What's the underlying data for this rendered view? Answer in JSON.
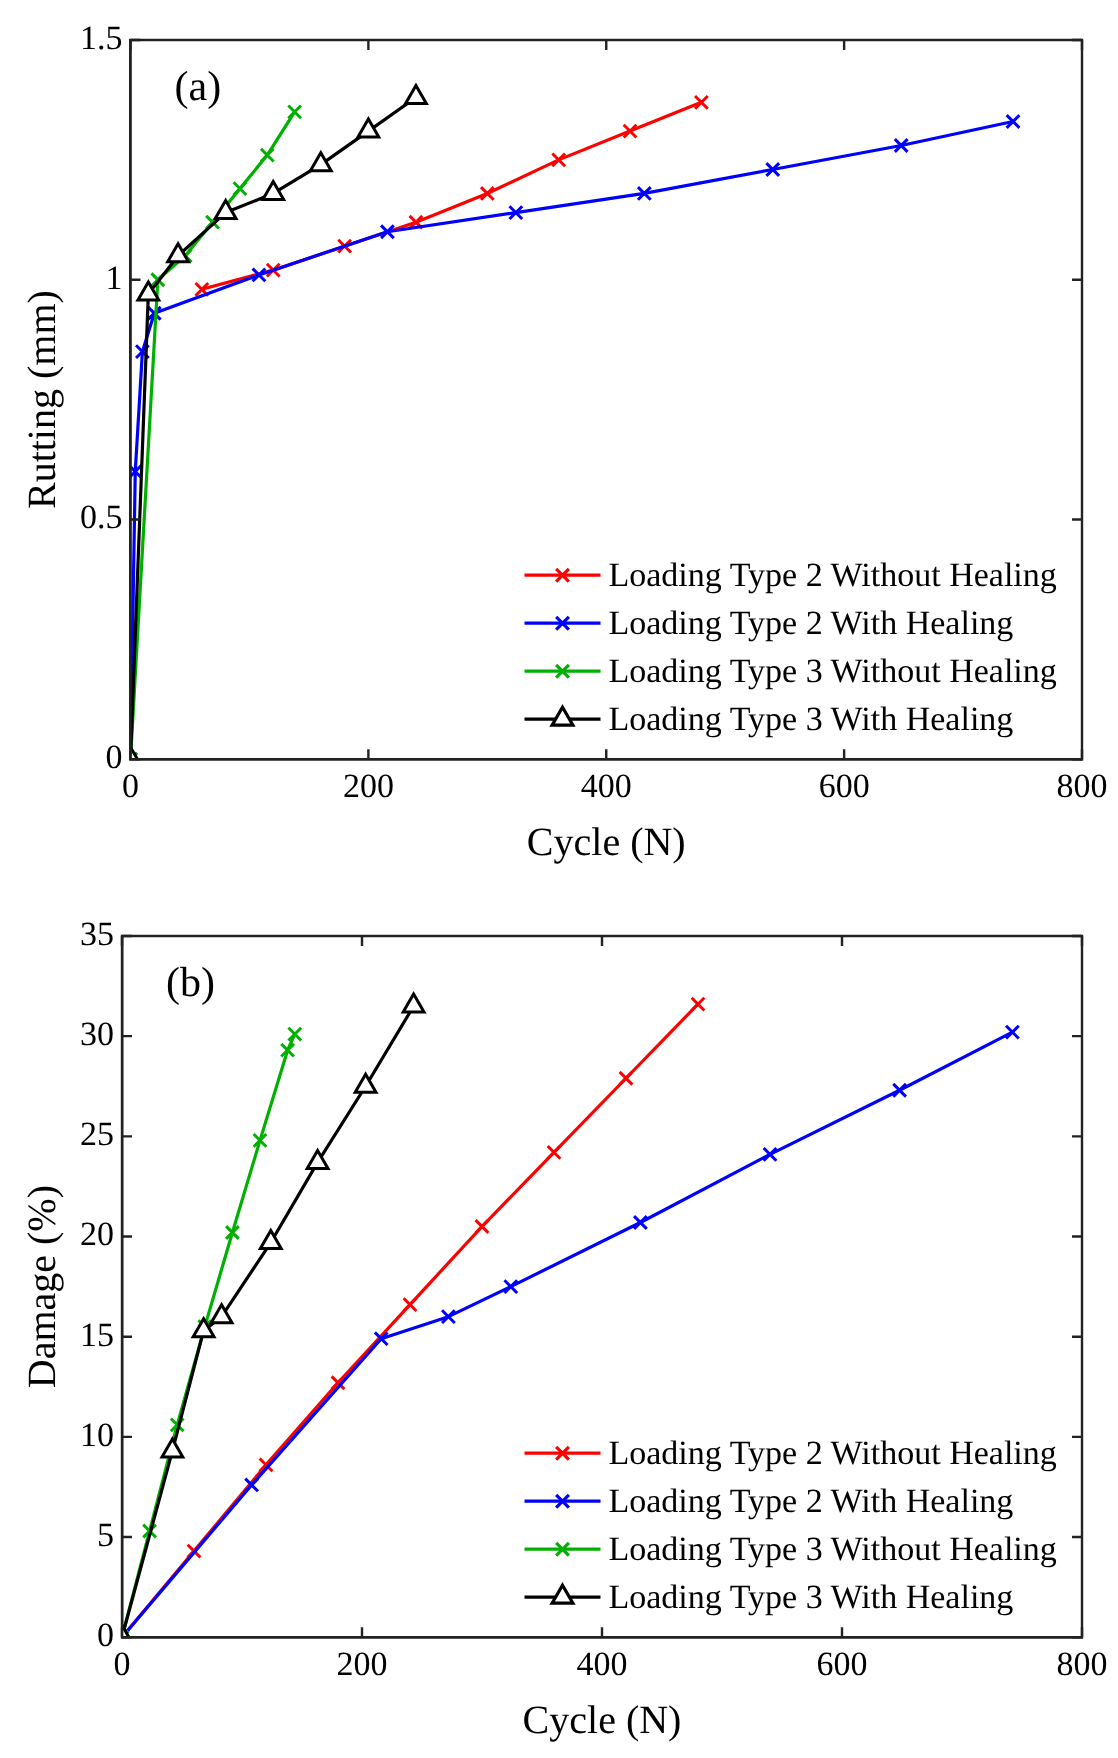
{
  "chart_data": [
    {
      "type": "line",
      "xlabel": "Cycle (N)",
      "ylabel": "Rutting (mm)",
      "annotations": [
        "(a)"
      ],
      "xlim": [
        0,
        800
      ],
      "xticks": [
        0,
        200,
        400,
        600,
        800
      ],
      "ylim": [
        0,
        1.5
      ],
      "yticks": [
        0,
        0.5,
        1,
        1.5
      ],
      "legend": "bottom right",
      "grid": false,
      "series": [
        {
          "name": "Loading Type 2 Without Healing",
          "color": "#ff0000",
          "marker": "cross",
          "x": [
            60,
            120,
            180,
            240,
            300,
            360,
            420,
            480
          ],
          "values": [
            0.98,
            1.02,
            1.07,
            1.12,
            1.18,
            1.25,
            1.31,
            1.37
          ]
        },
        {
          "name": "Loading Type 2 With Healing",
          "color": "#0000ff",
          "marker": "cross",
          "x": [
            0,
            4,
            10,
            20,
            108,
            216,
            324,
            432,
            540,
            648,
            742
          ],
          "values": [
            0,
            0.6,
            0.85,
            0.93,
            1.01,
            1.1,
            1.14,
            1.18,
            1.23,
            1.28,
            1.33
          ]
        },
        {
          "name": "Loading Type 3 Without Healing",
          "color": "#00b000",
          "marker": "cross",
          "x": [
            0,
            23,
            46,
            69,
            92,
            115,
            138
          ],
          "values": [
            0,
            1.0,
            1.05,
            1.12,
            1.19,
            1.26,
            1.35
          ]
        },
        {
          "name": "Loading Type 3 With Healing",
          "color": "#000000",
          "marker": "triangle",
          "x": [
            0,
            15,
            40,
            80,
            120,
            160,
            200,
            240
          ],
          "values": [
            0,
            0.97,
            1.05,
            1.14,
            1.18,
            1.24,
            1.31,
            1.38
          ]
        }
      ]
    },
    {
      "type": "line",
      "xlabel": "Cycle (N)",
      "ylabel": "Damage (%)",
      "annotations": [
        "(b)"
      ],
      "xlim": [
        0,
        800
      ],
      "xticks": [
        0,
        200,
        400,
        600,
        800
      ],
      "ylim": [
        0,
        35
      ],
      "yticks": [
        0,
        5,
        10,
        15,
        20,
        25,
        30,
        35
      ],
      "legend": "bottom right",
      "grid": false,
      "series": [
        {
          "name": "Loading Type 2 Without Healing",
          "color": "#ff0000",
          "marker": "cross",
          "x": [
            0,
            60,
            120,
            180,
            240,
            300,
            360,
            420,
            480
          ],
          "values": [
            0,
            4.3,
            8.6,
            12.7,
            16.6,
            20.5,
            24.2,
            27.9,
            31.6
          ]
        },
        {
          "name": "Loading Type 2 With Healing",
          "color": "#0000ff",
          "marker": "cross",
          "x": [
            0,
            108,
            216,
            272,
            324,
            432,
            540,
            648,
            742
          ],
          "values": [
            0,
            7.6,
            14.9,
            16.0,
            17.5,
            20.7,
            24.1,
            27.3,
            30.2
          ]
        },
        {
          "name": "Loading Type 3 Without Healing",
          "color": "#00b000",
          "marker": "cross",
          "x": [
            0,
            23,
            46,
            69,
            92,
            115,
            138,
            144
          ],
          "values": [
            0,
            5.3,
            10.6,
            15.5,
            20.2,
            24.8,
            29.3,
            30.1
          ]
        },
        {
          "name": "Loading Type 3 With Healing",
          "color": "#000000",
          "marker": "triangle",
          "x": [
            0,
            42,
            68,
            83,
            124,
            163,
            203,
            243
          ],
          "values": [
            0,
            9.3,
            15.3,
            16.0,
            19.7,
            23.7,
            27.5,
            31.5
          ]
        }
      ]
    }
  ]
}
